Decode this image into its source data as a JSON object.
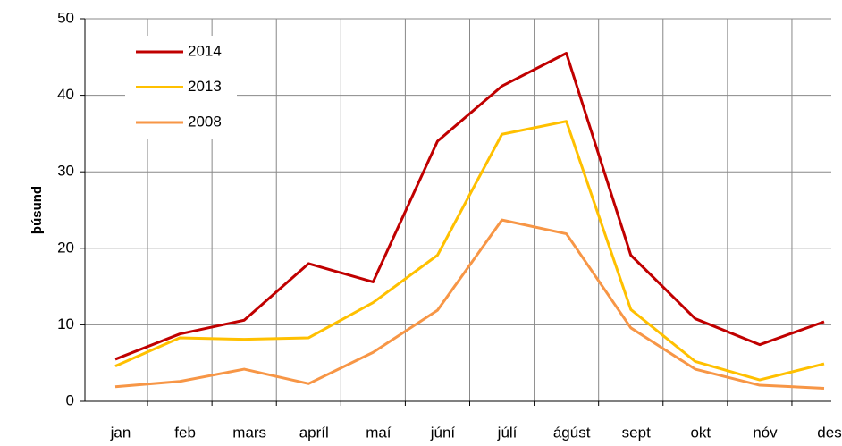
{
  "chart_data": {
    "type": "line",
    "y_label": "þúsund",
    "categories": [
      "jan",
      "feb",
      "mars",
      "apríl",
      "maí",
      "júní",
      "júlí",
      "ágúst",
      "sept",
      "okt",
      "nóv",
      "des"
    ],
    "series": [
      {
        "name": "2014",
        "color": "#c00000",
        "values": [
          5.5,
          8.8,
          10.6,
          18.0,
          15.6,
          34.0,
          41.2,
          45.5,
          19.1,
          10.8,
          7.4,
          10.4
        ]
      },
      {
        "name": "2013",
        "color": "#ffc000",
        "values": [
          4.6,
          8.3,
          8.1,
          8.3,
          12.9,
          19.1,
          34.9,
          36.6,
          12.0,
          5.2,
          2.8,
          4.9
        ]
      },
      {
        "name": "2008",
        "color": "#f79646",
        "values": [
          1.9,
          2.6,
          4.2,
          2.3,
          6.4,
          11.9,
          23.7,
          21.9,
          9.6,
          4.2,
          2.1,
          1.7
        ]
      }
    ],
    "ylim": [
      0,
      50
    ],
    "yticks": [
      0,
      10,
      20,
      30,
      40,
      50
    ],
    "grid": true,
    "legend": "upper left"
  }
}
